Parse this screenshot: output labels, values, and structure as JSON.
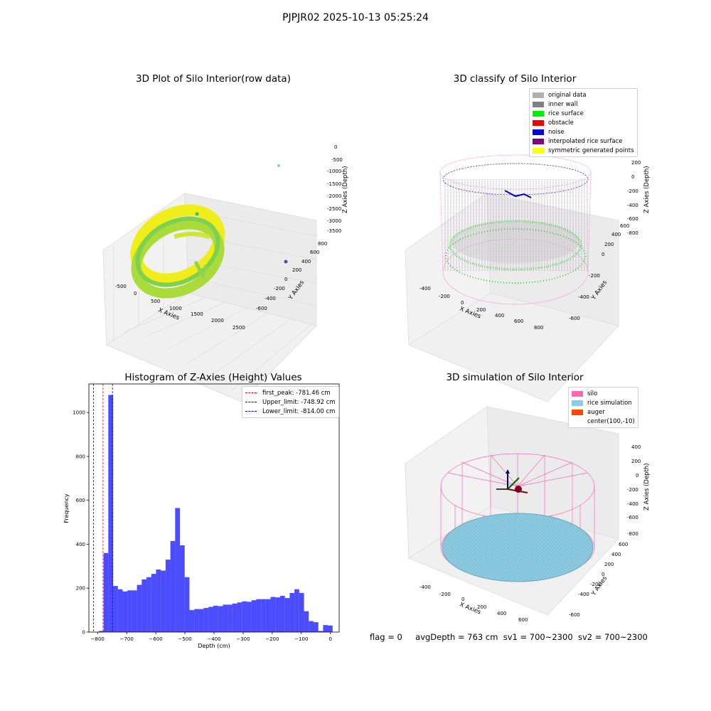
{
  "suptitle": "PJPJR02 2025-10-13 05:25:24",
  "panels": {
    "raw": {
      "title": "3D Plot of Silo Interior(row data)",
      "xlabel": "X Axies",
      "ylabel": "Y Axies",
      "zlabel": "Z Axies (Depth)",
      "xticks": [
        "-500",
        "0",
        "500",
        "1000",
        "1500",
        "2000",
        "2500"
      ],
      "yticks": [
        "-600",
        "-400",
        "-200",
        "0",
        "200",
        "400",
        "600",
        "800"
      ],
      "zticks": [
        "0",
        "-500",
        "-1000",
        "-1500",
        "-2000",
        "-2500",
        "-3000",
        "-3500"
      ]
    },
    "classify": {
      "title": "3D classify of Silo Interior",
      "xlabel": "X Axies",
      "ylabel": "Y Axies",
      "zlabel": "Z Axies (Depth)",
      "xticks": [
        "-400",
        "-200",
        "0",
        "200",
        "400",
        "600",
        "800"
      ],
      "yticks": [
        "-600",
        "-400",
        "-200",
        "0",
        "200",
        "400",
        "600"
      ],
      "zticks": [
        "200",
        "0",
        "-200",
        "-400",
        "-600",
        "-800"
      ],
      "legend": [
        {
          "label": "original data",
          "color": "#b0b0b0"
        },
        {
          "label": "inner wall",
          "color": "#808080"
        },
        {
          "label": "rice surface",
          "color": "#00ee00"
        },
        {
          "label": "obstacle",
          "color": "#ee0000"
        },
        {
          "label": "noise",
          "color": "#0000dd"
        },
        {
          "label": "interpolated rice surface",
          "color": "#800080"
        },
        {
          "label": "symmetric generated points",
          "color": "#ffff00"
        }
      ]
    },
    "simulation": {
      "title": "3D simulation of Silo Interior",
      "xlabel": "X Axies",
      "ylabel": "Y Axies",
      "zlabel": "Z Axies (Depth)",
      "xticks": [
        "-400",
        "-200",
        "0",
        "200",
        "400",
        "600"
      ],
      "yticks": [
        "-600",
        "-400",
        "-200",
        "0",
        "200",
        "400",
        "600"
      ],
      "zticks": [
        "400",
        "200",
        "0",
        "-200",
        "-400",
        "-600",
        "-800"
      ],
      "legend": [
        {
          "label": "silo",
          "color": "#ff69b4"
        },
        {
          "label": "rice simulation",
          "color": "#87ceeb"
        },
        {
          "label": "auger",
          "color": "#ff4500"
        },
        {
          "label": "center(100,-10)",
          "color": "#ffffff"
        }
      ]
    }
  },
  "status": {
    "flag": "flag = 0",
    "avg": "avgDepth = 763 cm",
    "sv1": "sv1 = 700~2300",
    "sv2": "sv2 = 700~2300"
  },
  "chart_data": [
    {
      "type": "bar",
      "title": "Histogram of Z-Axies (Height) Values",
      "xlabel": "Depth (cm)",
      "ylabel": "Frequency",
      "xlim": [
        -830,
        30
      ],
      "ylim": [
        0,
        1130
      ],
      "xticks": [
        -800,
        -700,
        -600,
        -500,
        -400,
        -300,
        -200,
        -100,
        0
      ],
      "yticks": [
        0,
        200,
        400,
        600,
        800,
        1000
      ],
      "bar_color": "#0000ff",
      "bin_width": 16.4,
      "bins_start": [
        -796,
        -779.6,
        -763.2,
        -746.8,
        -730.4,
        -714,
        -697.6,
        -681.2,
        -664.8,
        -648.4,
        -632,
        -615.6,
        -599.2,
        -582.8,
        -566.4,
        -550,
        -533.6,
        -517.2,
        -500.8,
        -484.4,
        -468,
        -451.6,
        -435.2,
        -418.8,
        -402.4,
        -386,
        -369.6,
        -353.2,
        -336.8,
        -320.4,
        -304,
        -287.6,
        -271.2,
        -254.8,
        -238.4,
        -222,
        -205.6,
        -189.2,
        -172.8,
        -156.4,
        -140,
        -123.6,
        -107.2,
        -90.8,
        -74.4,
        -58,
        -41.6,
        -25.2,
        -8.8
      ],
      "values": [
        5,
        360,
        1080,
        210,
        195,
        185,
        190,
        190,
        215,
        240,
        250,
        265,
        285,
        280,
        330,
        415,
        565,
        395,
        250,
        100,
        105,
        105,
        110,
        115,
        120,
        118,
        125,
        125,
        130,
        135,
        140,
        138,
        145,
        150,
        150,
        150,
        160,
        158,
        165,
        155,
        178,
        195,
        178,
        95,
        50,
        45,
        5,
        32,
        30
      ],
      "vlines": [
        {
          "label": "first_peak: -781.46 cm",
          "x": -781.46,
          "color": "#ff0000"
        },
        {
          "label": "Upper_limit: -748.92 cm",
          "x": -748.92,
          "color": "#0000cc"
        },
        {
          "label": "Lower_limit: -814.00 cm",
          "x": -814.0,
          "color": "#0000cc"
        }
      ]
    }
  ]
}
